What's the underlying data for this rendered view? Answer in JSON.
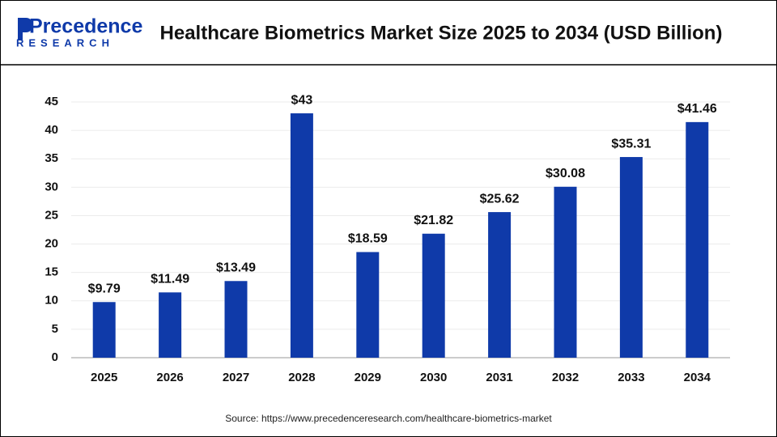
{
  "logo": {
    "name": "Precedence",
    "sub": "RESEARCH"
  },
  "source": "Source: https://www.precedenceresearch.com/healthcare-biometrics-market",
  "chart_data": {
    "type": "bar",
    "title": "Healthcare Biometrics Market Size 2025 to 2034 (USD Billion)",
    "categories": [
      "2025",
      "2026",
      "2027",
      "2028",
      "2029",
      "2030",
      "2031",
      "2032",
      "2033",
      "2034"
    ],
    "values": [
      9.79,
      11.49,
      13.49,
      43,
      18.59,
      21.82,
      25.62,
      30.08,
      35.31,
      41.46
    ],
    "value_labels": [
      "$9.79",
      "$11.49",
      "$13.49",
      "$43",
      "$18.59",
      "$21.82",
      "$25.62",
      "$30.08",
      "$35.31",
      "$41.46"
    ],
    "color": "#0f3aa9",
    "ylim": [
      0,
      45
    ],
    "yticks": [
      0,
      5,
      10,
      15,
      20,
      25,
      30,
      35,
      40,
      45
    ],
    "grid": true
  }
}
